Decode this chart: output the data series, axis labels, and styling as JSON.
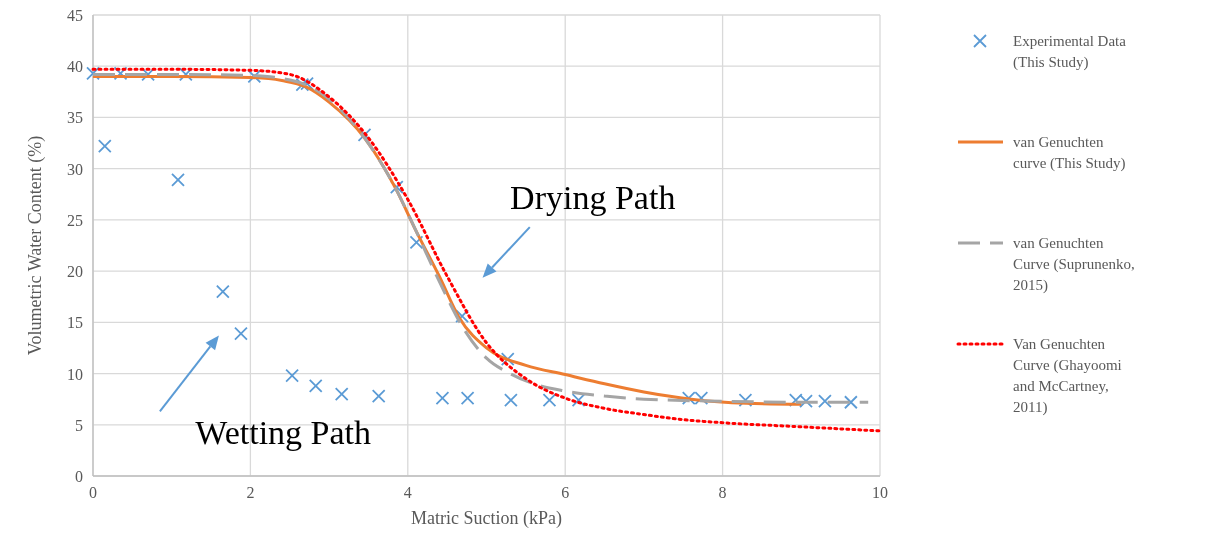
{
  "chart_data": {
    "type": "scatter",
    "xlabel": "Matric Suction (kPa)",
    "ylabel": "Volumetric Water Content (%)",
    "xlim": [
      0,
      10
    ],
    "xticks": [
      0,
      2,
      4,
      6,
      8,
      10
    ],
    "ylim": [
      0,
      45
    ],
    "yticks": [
      0,
      5,
      10,
      15,
      20,
      25,
      30,
      35,
      40,
      45
    ],
    "grid": true,
    "legend": "right",
    "series": [
      {
        "name": "Experimental Data (This Study)",
        "marker": "cross",
        "color": "#5b9bd5",
        "x": [
          0,
          0.35,
          0.7,
          1.18,
          2.05,
          2.66,
          2.72,
          3.45,
          3.86,
          4.11,
          4.69,
          5.27,
          0.15,
          1.08,
          1.65,
          1.88,
          2.53,
          2.83,
          3.16,
          3.63,
          4.44,
          4.76,
          5.31,
          5.8,
          6.17,
          7.57,
          7.73,
          8.29,
          8.93,
          9.06,
          9.3,
          9.63
        ],
        "values": [
          39.3,
          39.3,
          39.2,
          39.2,
          39.0,
          38.2,
          38.3,
          33.3,
          28.2,
          22.8,
          15.6,
          11.4,
          32.2,
          28.9,
          18.0,
          13.9,
          9.8,
          8.8,
          8.0,
          7.8,
          7.6,
          7.6,
          7.4,
          7.4,
          7.4,
          7.6,
          7.6,
          7.4,
          7.4,
          7.3,
          7.3,
          7.2
        ]
      },
      {
        "name": "van Genuchten curve (This Study)",
        "type": "line",
        "line_style": "solid",
        "color": "#ed7d31",
        "x": [
          0,
          1,
          2,
          2.4,
          2.7,
          3,
          3.45,
          3.85,
          4.1,
          4.4,
          4.65,
          5,
          5.5,
          6,
          6.5,
          7,
          7.6,
          8.3,
          9
        ],
        "values": [
          39,
          39,
          38.9,
          38.6,
          38,
          36.5,
          33,
          28,
          24,
          19.5,
          15.5,
          12.5,
          10.8,
          9.9,
          9,
          8.2,
          7.5,
          7.1,
          7.0
        ]
      },
      {
        "name": "van Genuchten Curve (Suprunenko, 2015)",
        "type": "line",
        "line_style": "dashed",
        "color": "#a5a5a5",
        "x": [
          0,
          1,
          2,
          2.4,
          2.7,
          3,
          3.45,
          3.85,
          4.1,
          4.4,
          4.7,
          5,
          5.3,
          5.6,
          6,
          6.5,
          7,
          8,
          9,
          9.85
        ],
        "values": [
          39.2,
          39.2,
          39.1,
          38.8,
          38.2,
          36.8,
          33,
          28,
          24,
          19,
          14.5,
          11.5,
          10,
          9,
          8.3,
          7.8,
          7.5,
          7.3,
          7.2,
          7.2
        ]
      },
      {
        "name": "Van Genuchten Curve (Ghayoomi and McCartney, 2011)",
        "type": "line",
        "line_style": "dotted",
        "color": "#ff0000",
        "x": [
          0,
          1,
          2,
          2.5,
          3,
          3.5,
          4,
          4.5,
          5,
          5.5,
          6,
          6.5,
          7,
          7.5,
          8,
          9,
          10
        ],
        "values": [
          39.7,
          39.7,
          39.6,
          39.2,
          37,
          33,
          27,
          19.5,
          13,
          9.5,
          7.6,
          6.6,
          6,
          5.5,
          5.2,
          4.8,
          4.4
        ]
      }
    ],
    "annotations": [
      "Drying Path",
      "Wetting Path"
    ]
  }
}
